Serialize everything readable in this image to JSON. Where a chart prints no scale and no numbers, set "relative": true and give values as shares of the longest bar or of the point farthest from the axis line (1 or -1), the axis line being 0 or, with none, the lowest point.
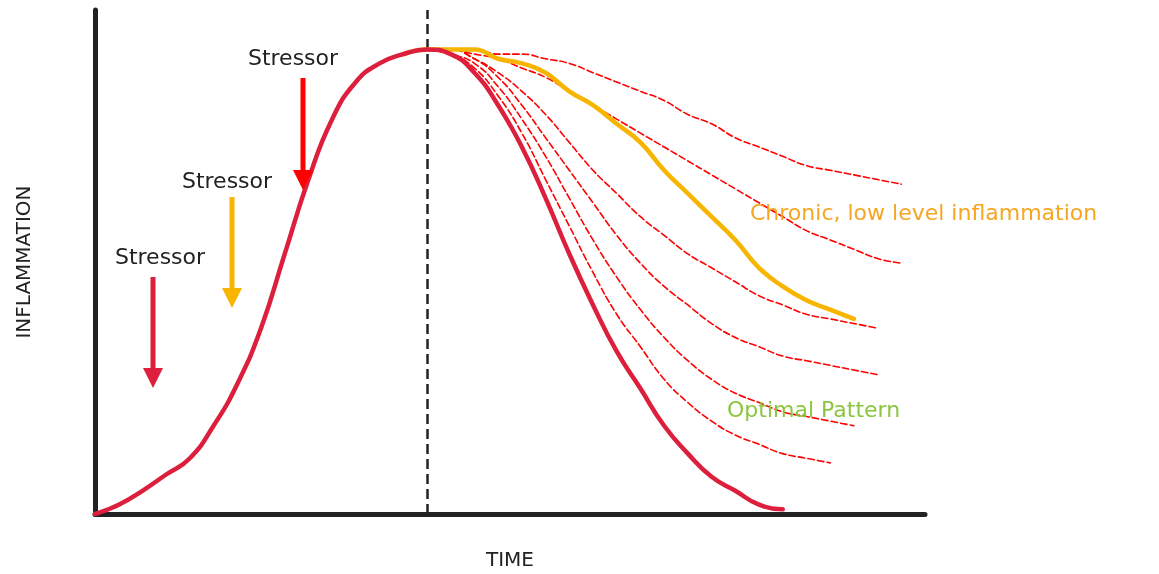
{
  "chart_data": {
    "type": "line",
    "relative": true,
    "xlabel": "TIME",
    "ylabel": "INFLAMMATION",
    "categories": [
      null,
      null,
      null,
      null,
      null,
      null,
      null,
      null,
      null,
      null,
      null,
      null,
      null,
      null,
      null,
      null,
      null,
      null,
      null,
      null,
      null,
      null,
      null,
      null,
      null,
      null,
      null,
      null,
      null,
      null,
      null,
      null,
      null,
      null,
      null,
      null
    ],
    "series": [
      {
        "color": "#ff0000",
        "line_style": "dashed",
        "values": [
          null,
          null,
          null,
          null,
          null,
          null,
          null,
          null,
          null,
          null,
          null,
          null,
          null,
          null,
          1,
          0.99,
          0.96,
          0.9,
          0.82,
          0.72,
          0.62,
          0.52,
          0.43,
          0.36,
          0.29,
          0.24,
          0.2,
          0.17,
          0.15,
          0.13,
          0.12,
          0.11,
          null,
          null,
          null,
          null
        ]
      },
      {
        "color": "#ff0000",
        "line_style": "dashed",
        "values": [
          null,
          null,
          null,
          null,
          null,
          null,
          null,
          null,
          null,
          null,
          null,
          null,
          null,
          null,
          1,
          0.99,
          0.97,
          0.92,
          0.85,
          0.77,
          0.68,
          0.59,
          0.51,
          0.44,
          0.38,
          0.33,
          0.29,
          0.26,
          0.24,
          0.22,
          0.21,
          0.2,
          0.19,
          null,
          null,
          null
        ]
      },
      {
        "color": "#ff0000",
        "line_style": "dashed",
        "values": [
          null,
          null,
          null,
          null,
          null,
          null,
          null,
          null,
          null,
          null,
          null,
          null,
          null,
          null,
          1,
          1,
          0.98,
          0.94,
          0.88,
          0.81,
          0.74,
          0.67,
          0.6,
          0.54,
          0.49,
          0.45,
          0.41,
          0.38,
          0.36,
          0.34,
          0.33,
          0.32,
          0.31,
          0.3,
          null,
          null
        ]
      },
      {
        "color": "#ff0000",
        "line_style": "dashed",
        "values": [
          null,
          null,
          null,
          null,
          null,
          null,
          null,
          null,
          null,
          null,
          null,
          null,
          null,
          null,
          1,
          1,
          0.98,
          0.95,
          0.91,
          0.86,
          0.8,
          0.74,
          0.69,
          0.64,
          0.6,
          0.56,
          0.53,
          0.5,
          0.47,
          0.45,
          0.43,
          0.42,
          0.41,
          0.4,
          null,
          null
        ]
      },
      {
        "color": "#ff0000",
        "line_style": "dashed",
        "values": [
          null,
          null,
          null,
          null,
          null,
          null,
          null,
          null,
          null,
          null,
          null,
          null,
          null,
          null,
          1,
          1,
          0.99,
          0.98,
          0.96,
          0.94,
          0.91,
          0.88,
          0.85,
          0.82,
          0.79,
          0.76,
          0.73,
          0.7,
          0.67,
          0.64,
          0.61,
          0.59,
          0.57,
          0.55,
          0.54,
          null
        ]
      },
      {
        "color": "#ff0000",
        "line_style": "dashed",
        "values": [
          null,
          null,
          null,
          null,
          null,
          null,
          null,
          null,
          null,
          null,
          null,
          null,
          null,
          null,
          1,
          1,
          1,
          0.99,
          0.99,
          0.98,
          0.97,
          0.95,
          0.93,
          0.91,
          0.89,
          0.86,
          0.84,
          0.81,
          0.79,
          0.77,
          0.75,
          0.74,
          0.73,
          0.72,
          0.71,
          null
        ]
      },
      {
        "color": "#f7b500",
        "values": [
          null,
          null,
          null,
          null,
          null,
          null,
          null,
          null,
          null,
          null,
          null,
          null,
          null,
          0.99,
          1,
          1,
          1,
          0.98,
          0.97,
          0.95,
          0.91,
          0.88,
          0.84,
          0.8,
          0.74,
          0.69,
          0.64,
          0.59,
          0.53,
          0.49,
          0.46,
          0.44,
          0.42,
          null,
          null,
          null
        ]
      },
      {
        "color": "#dc1f3c",
        "values": [
          0,
          0.02,
          0.05,
          0.085,
          0.12,
          0.19,
          0.28,
          0.4,
          0.56,
          0.72,
          0.85,
          0.93,
          0.97,
          0.99,
          1,
          0.99,
          0.95,
          0.88,
          0.79,
          0.68,
          0.56,
          0.45,
          0.35,
          0.27,
          0.19,
          0.13,
          0.08,
          0.05,
          0.02,
          0.01,
          null,
          null,
          null,
          null,
          null,
          null
        ]
      }
    ],
    "annotations": [
      "Stressor",
      "Stressor",
      "Stressor",
      "Chronic, low level inflammation",
      "Optimal Pattern"
    ],
    "marker": "none",
    "line_style": "solid",
    "grid": false
  }
}
